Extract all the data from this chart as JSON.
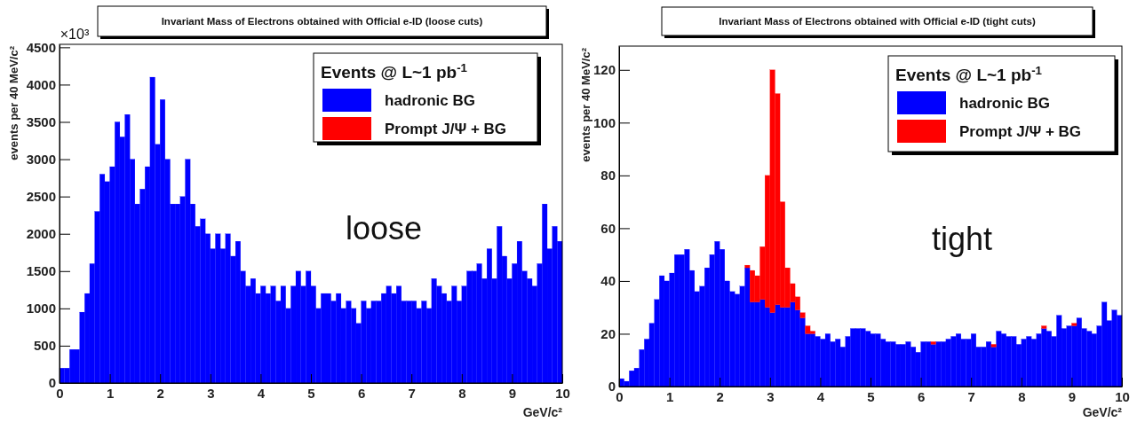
{
  "chart_data": [
    {
      "type": "bar",
      "title": "Invariant Mass of Electrons obtained with Official e-ID (loose cuts)",
      "xlabel": "GeV/c²",
      "ylabel": "events per 40 MeV/c²",
      "legend_title": "Events @ L~1 pb$^{-1}$",
      "annotations": [
        "×10³",
        "loose"
      ],
      "stacked": true,
      "legend": "top right",
      "xlim": [
        0,
        10
      ],
      "ylim": [
        0,
        4540
      ],
      "xticks": [
        0,
        1,
        2,
        3,
        4,
        5,
        6,
        7,
        8,
        9,
        10
      ],
      "yticks": [
        0,
        500,
        1000,
        1500,
        2000,
        2500,
        3000,
        3500,
        4000,
        4500
      ],
      "x": [
        0.05,
        0.15,
        0.25,
        0.35,
        0.45,
        0.55,
        0.65,
        0.75,
        0.85,
        0.95,
        1.05,
        1.15,
        1.25,
        1.35,
        1.45,
        1.55,
        1.65,
        1.75,
        1.85,
        1.95,
        2.05,
        2.15,
        2.25,
        2.35,
        2.45,
        2.55,
        2.65,
        2.75,
        2.85,
        2.95,
        3.05,
        3.15,
        3.25,
        3.35,
        3.45,
        3.55,
        3.65,
        3.75,
        3.85,
        3.95,
        4.05,
        4.15,
        4.25,
        4.35,
        4.45,
        4.55,
        4.65,
        4.75,
        4.85,
        4.95,
        5.05,
        5.15,
        5.25,
        5.35,
        5.45,
        5.55,
        5.65,
        5.75,
        5.85,
        5.95,
        6.05,
        6.15,
        6.25,
        6.35,
        6.45,
        6.55,
        6.65,
        6.75,
        6.85,
        6.95,
        7.05,
        7.15,
        7.25,
        7.35,
        7.45,
        7.55,
        7.65,
        7.75,
        7.85,
        7.95,
        8.05,
        8.15,
        8.25,
        8.35,
        8.45,
        8.55,
        8.65,
        8.75,
        8.85,
        8.95,
        9.05,
        9.15,
        9.25,
        9.35,
        9.45,
        9.55,
        9.65,
        9.75,
        9.85,
        9.95
      ],
      "series": [
        {
          "name": "hadronic BG",
          "color": "#0000ff",
          "values": [
            200,
            200,
            450,
            450,
            950,
            1200,
            1600,
            2300,
            2800,
            2700,
            2900,
            3500,
            3300,
            3600,
            3000,
            2400,
            2600,
            2900,
            4100,
            3200,
            3800,
            3000,
            2400,
            2400,
            2500,
            3000,
            2400,
            2100,
            2200,
            2000,
            1800,
            2000,
            1800,
            2000,
            1700,
            1900,
            1500,
            1300,
            1400,
            1200,
            1300,
            1200,
            1300,
            1100,
            1300,
            1000,
            1300,
            1500,
            1300,
            1500,
            1300,
            1000,
            1200,
            1200,
            1100,
            1200,
            1000,
            1100,
            1000,
            800,
            1100,
            1000,
            1100,
            1100,
            1200,
            1300,
            1200,
            1300,
            1100,
            1100,
            1100,
            1000,
            1100,
            1000,
            1400,
            1300,
            1200,
            1100,
            1300,
            1100,
            1300,
            1500,
            1500,
            1600,
            1400,
            1800,
            1400,
            2100,
            1700,
            1400,
            1600,
            1900,
            1500,
            1400,
            1300,
            1600,
            2400,
            1800,
            2100,
            1900
          ]
        },
        {
          "name": "Prompt J/Ψ + BG",
          "color": "#ff0000",
          "values": [
            0,
            0,
            0,
            0,
            0,
            0,
            0,
            0,
            0,
            0,
            0,
            0,
            0,
            0,
            0,
            0,
            0,
            0,
            0,
            0,
            0,
            0,
            0,
            0,
            0,
            0,
            0,
            0,
            0,
            0,
            0,
            0,
            0,
            0,
            0,
            0,
            0,
            0,
            0,
            0,
            0,
            0,
            0,
            0,
            0,
            0,
            0,
            0,
            0,
            0,
            0,
            0,
            0,
            0,
            0,
            0,
            0,
            0,
            0,
            0,
            0,
            0,
            0,
            0,
            0,
            0,
            0,
            0,
            0,
            0,
            0,
            0,
            0,
            0,
            0,
            0,
            0,
            0,
            0,
            0,
            0,
            0,
            0,
            0,
            0,
            0,
            0,
            0,
            0,
            0,
            0,
            0,
            0,
            0,
            0,
            0,
            0,
            0,
            0,
            0
          ]
        }
      ]
    },
    {
      "type": "bar",
      "title": "Invariant Mass of Electrons obtained with Official e-ID (tight cuts)",
      "xlabel": "GeV/c²",
      "ylabel": "events per 40 MeV/c²",
      "legend_title": "Events @ L~1 pb$^{-1}$",
      "annotations": [
        "tight"
      ],
      "stacked": true,
      "legend": "top right",
      "xlim": [
        0,
        10
      ],
      "ylim": [
        0,
        129
      ],
      "xticks": [
        0,
        1,
        2,
        3,
        4,
        5,
        6,
        7,
        8,
        9,
        10
      ],
      "yticks": [
        0,
        20,
        40,
        60,
        80,
        100,
        120
      ],
      "x": [
        0.05,
        0.15,
        0.25,
        0.35,
        0.45,
        0.55,
        0.65,
        0.75,
        0.85,
        0.95,
        1.05,
        1.15,
        1.25,
        1.35,
        1.45,
        1.55,
        1.65,
        1.75,
        1.85,
        1.95,
        2.05,
        2.15,
        2.25,
        2.35,
        2.45,
        2.55,
        2.65,
        2.75,
        2.85,
        2.95,
        3.05,
        3.15,
        3.25,
        3.35,
        3.45,
        3.55,
        3.65,
        3.75,
        3.85,
        3.95,
        4.05,
        4.15,
        4.25,
        4.35,
        4.45,
        4.55,
        4.65,
        4.75,
        4.85,
        4.95,
        5.05,
        5.15,
        5.25,
        5.35,
        5.45,
        5.55,
        5.65,
        5.75,
        5.85,
        5.95,
        6.05,
        6.15,
        6.25,
        6.35,
        6.45,
        6.55,
        6.65,
        6.75,
        6.85,
        6.95,
        7.05,
        7.15,
        7.25,
        7.35,
        7.45,
        7.55,
        7.65,
        7.75,
        7.85,
        7.95,
        8.05,
        8.15,
        8.25,
        8.35,
        8.45,
        8.55,
        8.65,
        8.75,
        8.85,
        8.95,
        9.05,
        9.15,
        9.25,
        9.35,
        9.45,
        9.55,
        9.65,
        9.75,
        9.85,
        9.95
      ],
      "series": [
        {
          "name": "hadronic BG",
          "color": "#0000ff",
          "values": [
            3,
            2,
            6,
            7,
            14,
            18,
            24,
            33,
            42,
            40,
            43,
            50,
            50,
            52,
            44,
            36,
            38,
            45,
            50,
            55,
            52,
            40,
            36,
            35,
            38,
            45,
            32,
            32,
            33,
            30,
            28,
            31,
            30,
            30,
            32,
            29,
            26,
            20,
            20,
            19,
            18,
            20,
            17,
            18,
            15,
            19,
            22,
            22,
            22,
            21,
            20,
            20,
            18,
            17,
            17,
            16,
            16,
            17,
            15,
            13,
            17,
            17,
            16,
            17,
            17,
            18,
            19,
            20,
            18,
            18,
            20,
            15,
            15,
            17,
            15,
            21,
            20,
            19,
            19,
            16,
            18,
            19,
            18,
            20,
            22,
            21,
            19,
            27,
            22,
            23,
            23,
            26,
            22,
            21,
            20,
            23,
            32,
            25,
            29,
            27
          ]
        },
        {
          "name": "Prompt J/Ψ + BG",
          "color": "#ff0000",
          "values": [
            0,
            0,
            0,
            0,
            0,
            0,
            0,
            0,
            0,
            0,
            0,
            0,
            0,
            0,
            0,
            0,
            0,
            0,
            0,
            0,
            0,
            0,
            0,
            0,
            0,
            1,
            12,
            10,
            20,
            50,
            92,
            80,
            40,
            15,
            7,
            5,
            2,
            3,
            1,
            0,
            0,
            0,
            0,
            0,
            0,
            0,
            0,
            0,
            0,
            0,
            0,
            0,
            0,
            0,
            0,
            0,
            0,
            0,
            0,
            0,
            0,
            0,
            1,
            0,
            0,
            0,
            0,
            0,
            0,
            0,
            0,
            0,
            0,
            0,
            1,
            0,
            0,
            0,
            0,
            0,
            0,
            0,
            0,
            0,
            1,
            0,
            0,
            0,
            0,
            0,
            1,
            0,
            0,
            0,
            0,
            0,
            0,
            0,
            0,
            0
          ]
        }
      ]
    }
  ]
}
